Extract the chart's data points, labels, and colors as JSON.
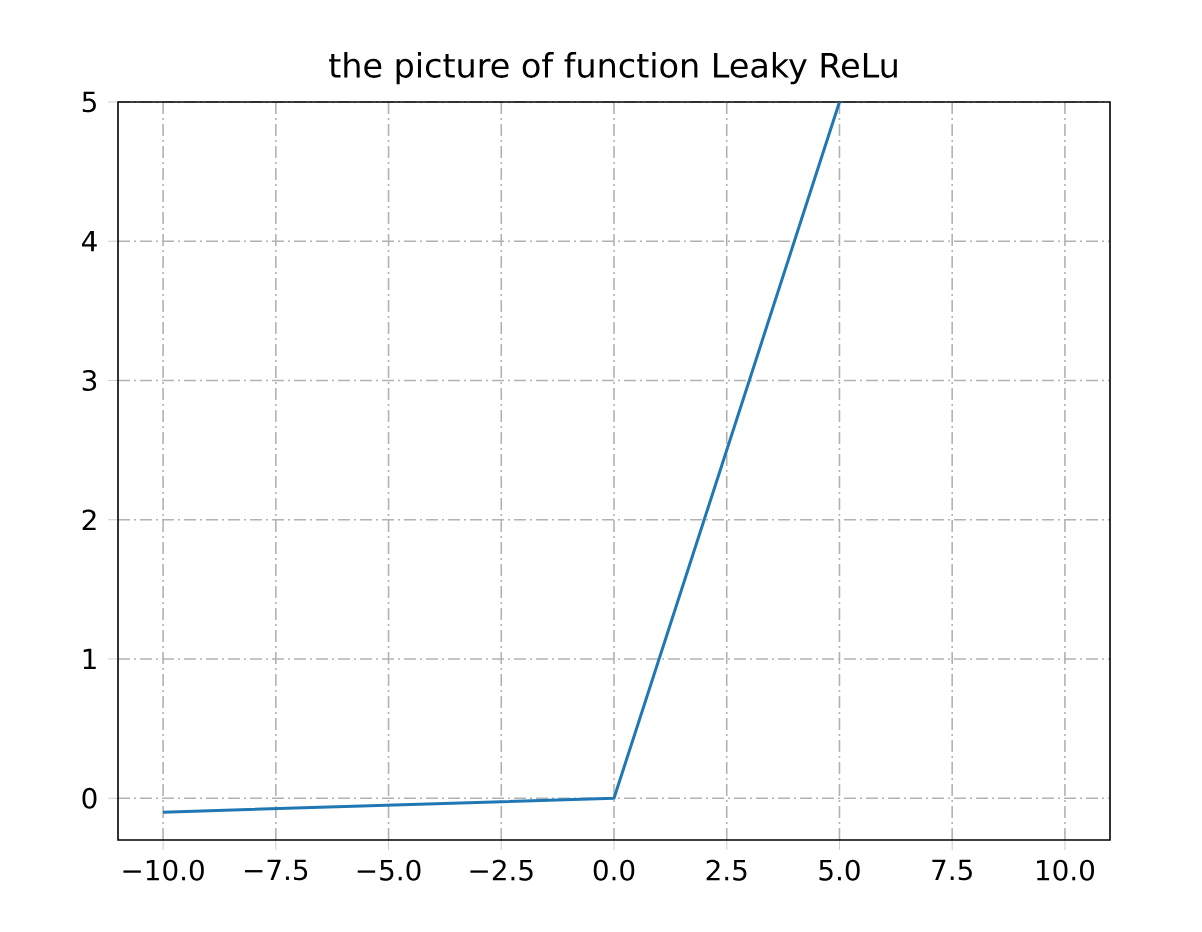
{
  "chart_data": {
    "type": "line",
    "title": "the picture of function Leaky ReLu",
    "x": [
      -10,
      0,
      5
    ],
    "series": [
      {
        "color": "#1f77b4",
        "values": [
          -0.1,
          0,
          5
        ]
      }
    ],
    "xlim": [
      -11,
      11
    ],
    "ylim": [
      -0.3,
      5
    ],
    "xticks": [
      {
        "value": -10,
        "label": "−10.0"
      },
      {
        "value": -7.5,
        "label": "−7.5"
      },
      {
        "value": -5,
        "label": "−5.0"
      },
      {
        "value": -2.5,
        "label": "−2.5"
      },
      {
        "value": 0,
        "label": "0.0"
      },
      {
        "value": 2.5,
        "label": "2.5"
      },
      {
        "value": 5,
        "label": "5.0"
      },
      {
        "value": 7.5,
        "label": "7.5"
      },
      {
        "value": 10,
        "label": "10.0"
      }
    ],
    "yticks": [
      0,
      1,
      2,
      3,
      4,
      5
    ],
    "grid": true,
    "marker": "none",
    "line_style": "solid"
  }
}
